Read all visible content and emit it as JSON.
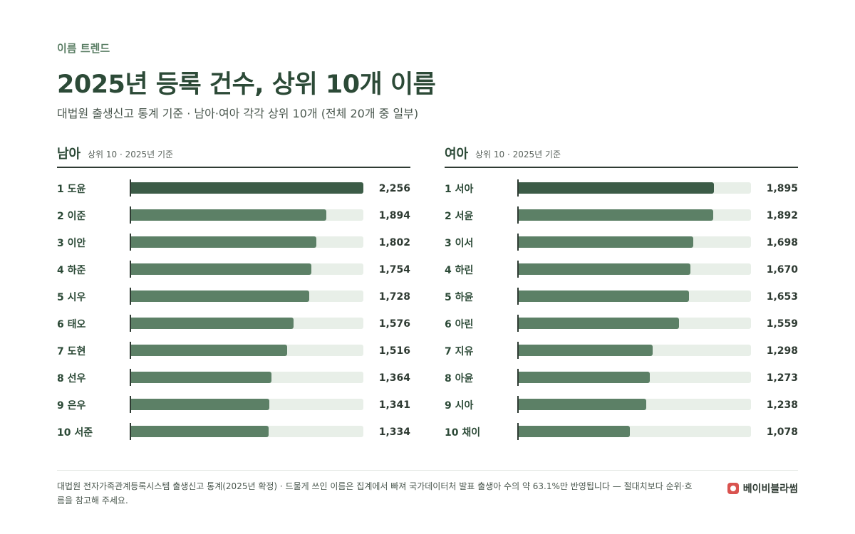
{
  "header": {
    "eyebrow": "이름 트렌드",
    "title": "2025년 등록 건수, 상위 10개 이름",
    "subtitle": "대법원 출생신고 통계 기준 · 남아·여아 각각 상위 10개 (전체 20개 중 일부)"
  },
  "chart_data": [
    {
      "type": "bar",
      "orientation": "horizontal",
      "title": "남아",
      "subtitle": "상위 10 · 2025년 기준",
      "categories": [
        "1 도윤",
        "2 이준",
        "3 이안",
        "4 하준",
        "5 시우",
        "6 태오",
        "7 도현",
        "8 선우",
        "9 은우",
        "10 서준"
      ],
      "values": [
        2256,
        1894,
        1802,
        1754,
        1728,
        1576,
        1516,
        1364,
        1341,
        1334
      ],
      "value_labels": [
        "2,256",
        "1,894",
        "1,802",
        "1,754",
        "1,728",
        "1,576",
        "1,516",
        "1,364",
        "1,341",
        "1,334"
      ],
      "xlim": [
        0,
        2256
      ]
    },
    {
      "type": "bar",
      "orientation": "horizontal",
      "title": "여아",
      "subtitle": "상위 10 · 2025년 기준",
      "categories": [
        "1 서아",
        "2 서윤",
        "3 이서",
        "4 하린",
        "5 하윤",
        "6 아린",
        "7 지유",
        "8 아윤",
        "9 시아",
        "10 채이"
      ],
      "values": [
        1895,
        1892,
        1698,
        1670,
        1653,
        1559,
        1298,
        1273,
        1238,
        1078
      ],
      "value_labels": [
        "1,895",
        "1,892",
        "1,698",
        "1,670",
        "1,653",
        "1,559",
        "1,298",
        "1,273",
        "1,238",
        "1,078"
      ],
      "xlim": [
        0,
        2256
      ]
    }
  ],
  "colors": {
    "bar_top": "#3c5c47",
    "bar": "#5c8066",
    "track": "#e8efe8",
    "brand": "#d9534f"
  },
  "footer": {
    "note": "대법원 전자가족관계등록시스템 출생신고 통계(2025년 확정) · 드물게 쓰인 이름은 집계에서 빠져 국가데이터처 발표 출생아 수의 약 63.1%만 반영됩니다 — 절대치보다 순위·흐름을 참고해 주세요.",
    "brand_name": "베이비블라썸",
    "brand_icon": "flower-icon"
  }
}
